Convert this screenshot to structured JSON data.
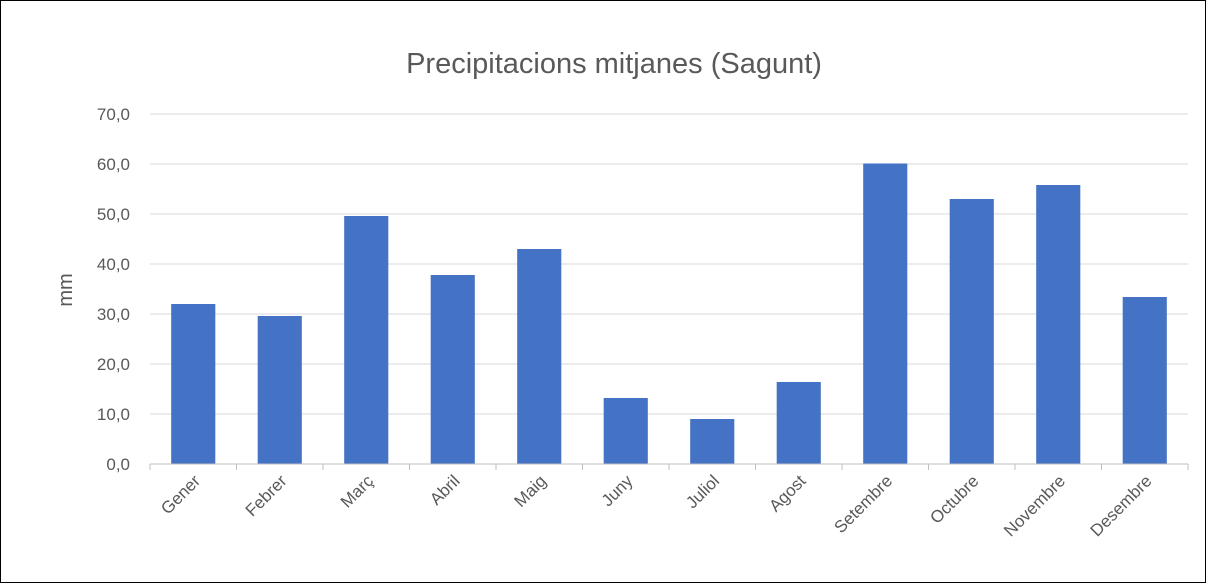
{
  "chart_data": {
    "type": "bar",
    "title": "Precipitacions mitjanes (Sagunt)",
    "y_label": "mm",
    "categories": [
      "Gener",
      "Febrer",
      "Març",
      "Abril",
      "Maig",
      "Juny",
      "Juliol",
      "Agost",
      "Setembre",
      "Octubre",
      "Novembre",
      "Desembre"
    ],
    "values": [
      32.0,
      29.6,
      49.6,
      37.8,
      43.0,
      13.2,
      9.0,
      16.4,
      60.1,
      53.0,
      55.8,
      33.4
    ],
    "color": "#4472c4",
    "ylim": [
      0,
      70
    ],
    "yticks": [
      {
        "value": 0,
        "label": "0,0"
      },
      {
        "value": 10,
        "label": "10,0"
      },
      {
        "value": 20,
        "label": "20,0"
      },
      {
        "value": 30,
        "label": "30,0"
      },
      {
        "value": 40,
        "label": "40,0"
      },
      {
        "value": 50,
        "label": "50,0"
      },
      {
        "value": 60,
        "label": "60,0"
      },
      {
        "value": 70,
        "label": "70,0"
      }
    ],
    "grid": true
  }
}
